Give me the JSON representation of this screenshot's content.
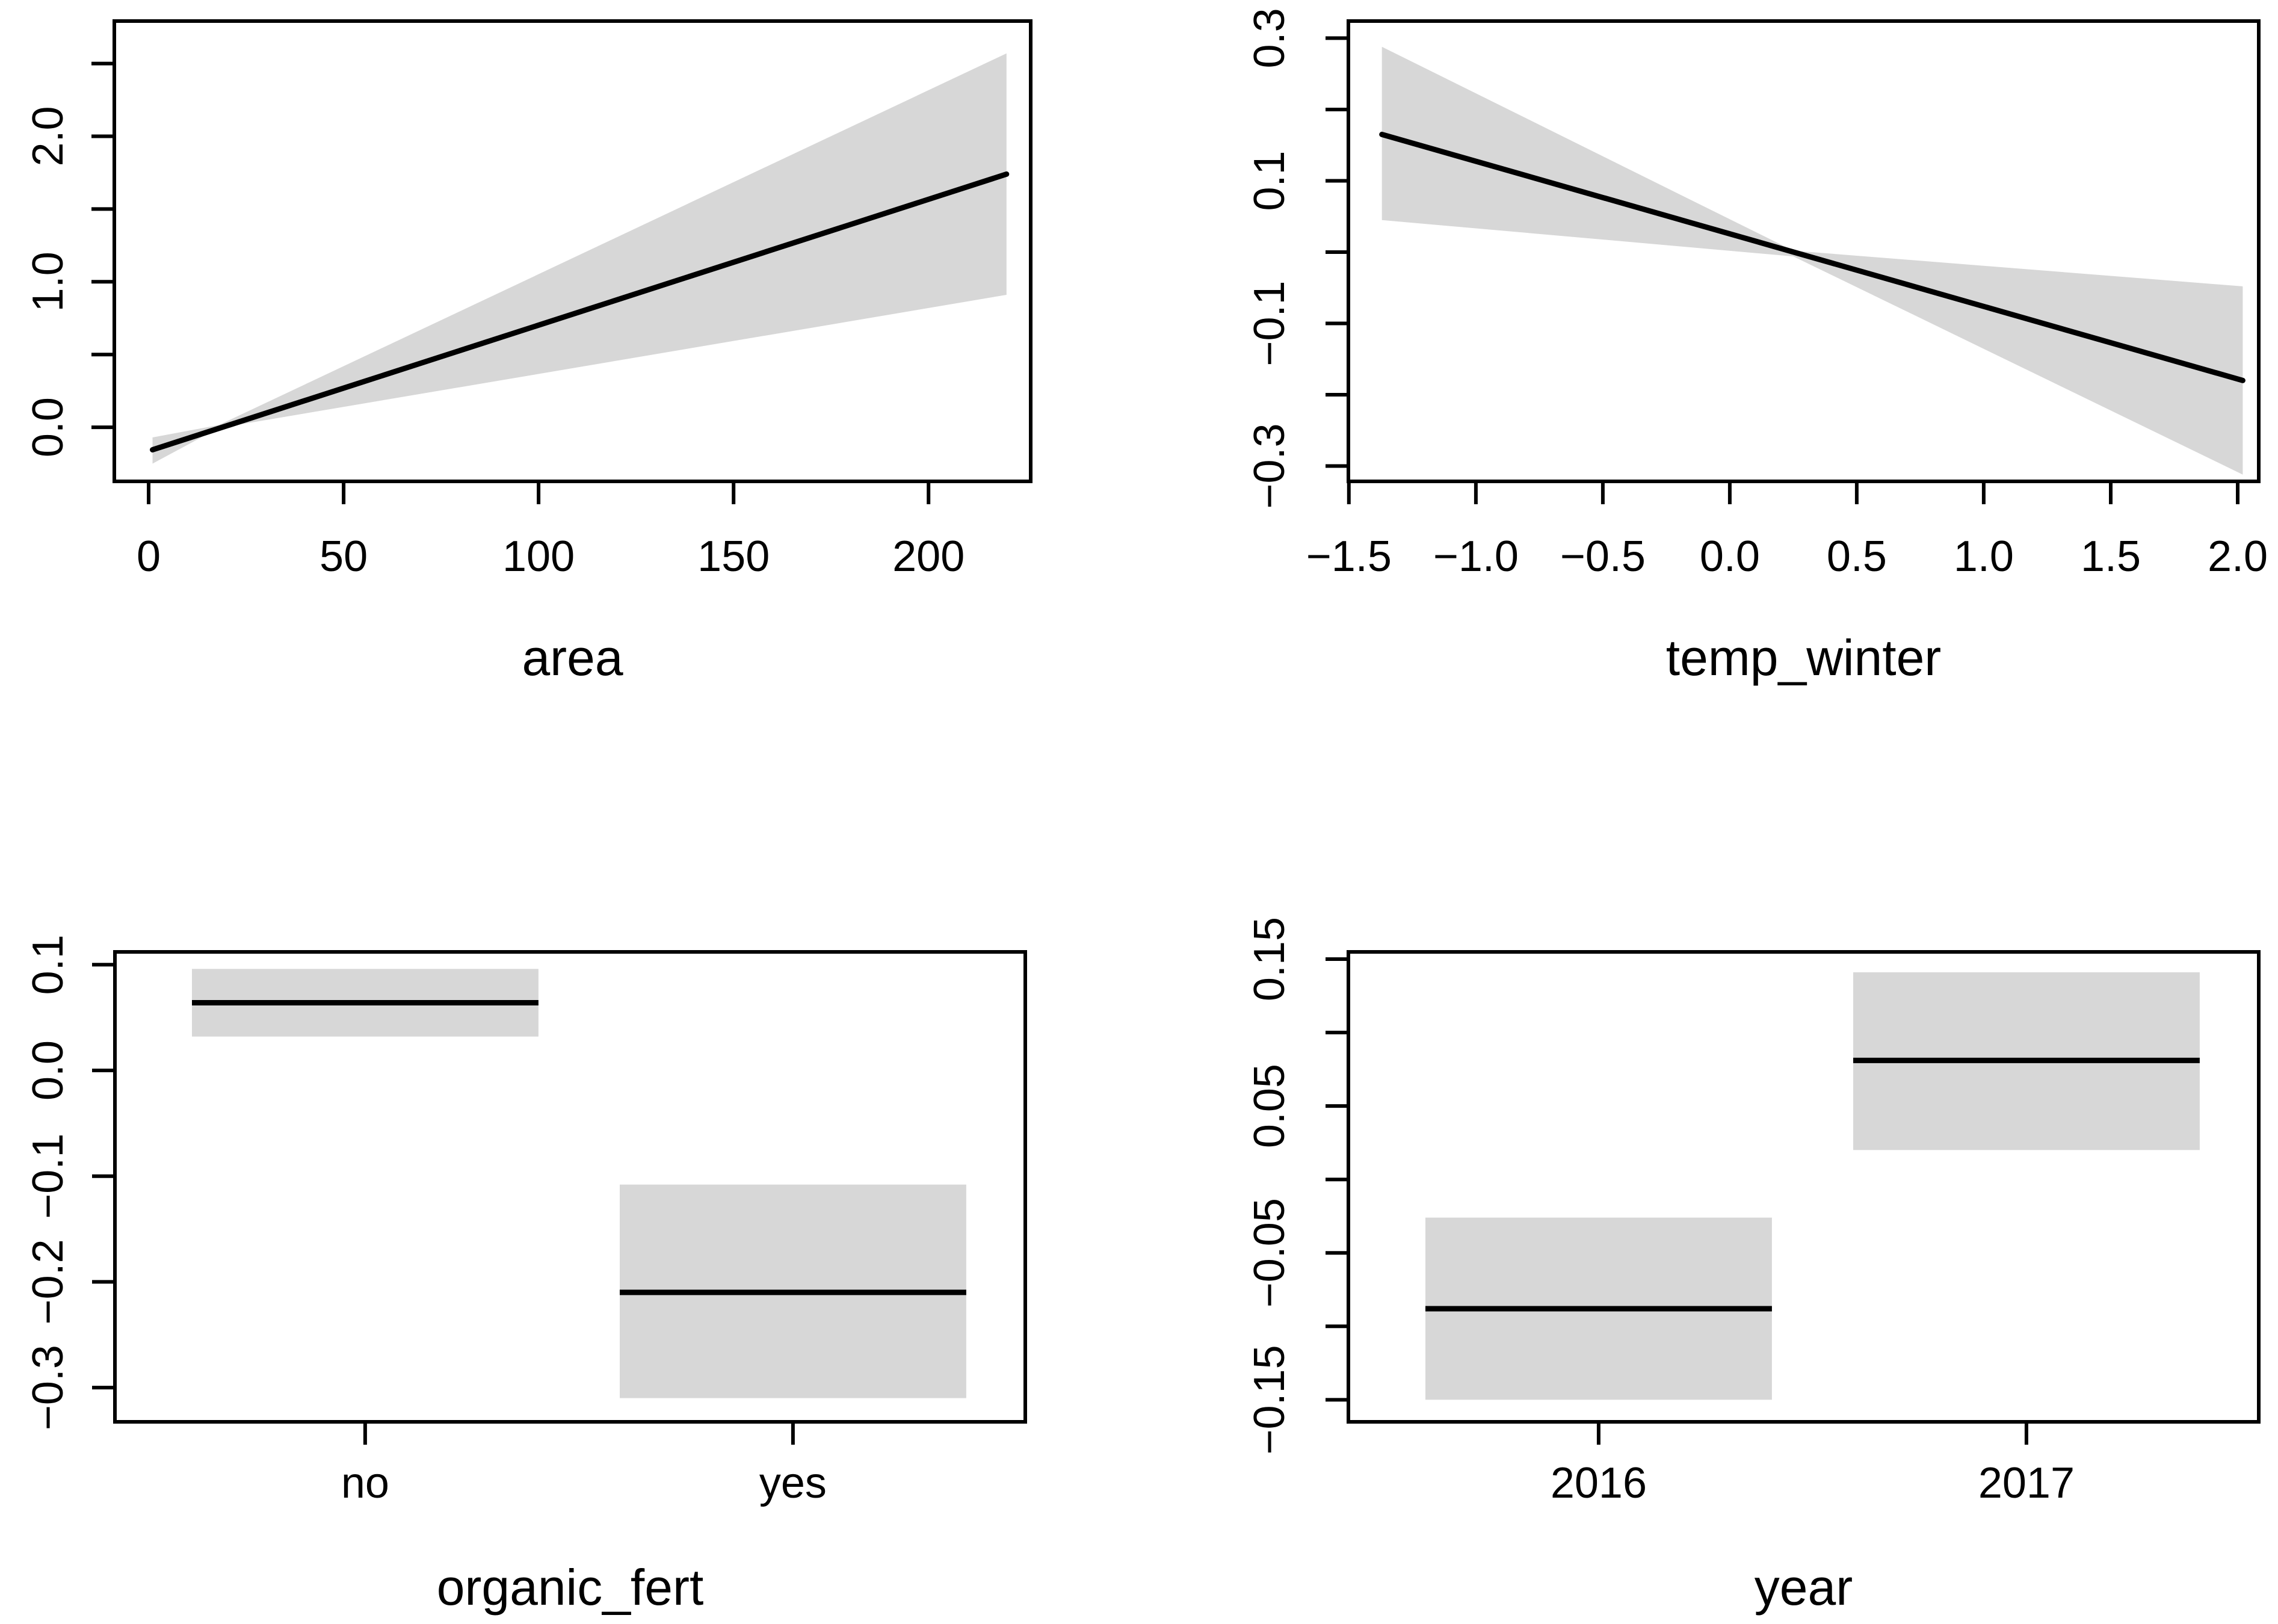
{
  "figure": {
    "background": "#ffffff",
    "ink_color": "#000000",
    "band_color": "#d7d7d7",
    "description": "2x2 grid of regression effect plots with 95% confidence bands"
  },
  "chart_data": [
    {
      "id": "area",
      "type": "line",
      "xlabel": "area",
      "ylabel": "",
      "xlim": [
        -8.8,
        226.2
      ],
      "ylim": [
        -0.372,
        2.792
      ],
      "grid": false,
      "xticks": [
        {
          "v": 0,
          "label": "0"
        },
        {
          "v": 50,
          "label": "50"
        },
        {
          "v": 100,
          "label": "100"
        },
        {
          "v": 150,
          "label": "150"
        },
        {
          "v": 200,
          "label": "200"
        }
      ],
      "yticks": [
        {
          "v": 0.0,
          "label": "0.0"
        },
        {
          "v": 0.5,
          "label": null
        },
        {
          "v": 1.0,
          "label": "1.0"
        },
        {
          "v": 1.5,
          "label": null
        },
        {
          "v": 2.0,
          "label": "2.0"
        },
        {
          "v": 2.5,
          "label": null
        }
      ],
      "fit": [
        [
          1,
          -0.155
        ],
        [
          220,
          1.74
        ]
      ],
      "band_upper": [
        [
          1,
          -0.07
        ],
        [
          18,
          0.015
        ],
        [
          220,
          2.57
        ]
      ],
      "band_lower": [
        [
          1,
          -0.25
        ],
        [
          18,
          -0.005
        ],
        [
          220,
          0.91
        ]
      ]
    },
    {
      "id": "temp_winter",
      "type": "line",
      "xlabel": "temp_winter",
      "ylabel": "",
      "xlim": [
        -1.502,
        2.083
      ],
      "ylim": [
        -0.3215,
        0.324
      ],
      "grid": false,
      "xticks": [
        {
          "v": -1.5,
          "label": "−1.5"
        },
        {
          "v": -1.0,
          "label": "−1.0"
        },
        {
          "v": -0.5,
          "label": "−0.5"
        },
        {
          "v": 0.0,
          "label": "0.0"
        },
        {
          "v": 0.5,
          "label": "0.5"
        },
        {
          "v": 1.0,
          "label": "1.0"
        },
        {
          "v": 1.5,
          "label": "1.5"
        },
        {
          "v": 2.0,
          "label": "2.0"
        }
      ],
      "yticks": [
        {
          "v": -0.3,
          "label": "−0.3"
        },
        {
          "v": -0.2,
          "label": null
        },
        {
          "v": -0.1,
          "label": "−0.1"
        },
        {
          "v": 0.0,
          "label": null
        },
        {
          "v": 0.1,
          "label": "0.1"
        },
        {
          "v": 0.2,
          "label": null
        },
        {
          "v": 0.3,
          "label": "0.3"
        }
      ],
      "fit": [
        [
          -1.37,
          0.165
        ],
        [
          2.02,
          -0.18
        ]
      ],
      "band_upper": [
        [
          -1.37,
          0.288
        ],
        [
          0.25,
          0.002
        ],
        [
          2.02,
          -0.048
        ]
      ],
      "band_lower": [
        [
          -1.37,
          0.045
        ],
        [
          0.25,
          -0.006
        ],
        [
          2.02,
          -0.312
        ]
      ]
    },
    {
      "id": "organic_fert",
      "type": "factor-ci",
      "xlabel": "organic_fert",
      "ylabel": "",
      "xlim": [
        0.415,
        2.543
      ],
      "ylim": [
        -0.3324,
        0.1121
      ],
      "grid": false,
      "box_halfwidth": 0.405,
      "categories": [
        {
          "label": "no",
          "pos": 1,
          "fit": 0.064,
          "lower": 0.032,
          "upper": 0.096
        },
        {
          "label": "yes",
          "pos": 2,
          "fit": -0.21,
          "lower": -0.31,
          "upper": -0.108
        }
      ],
      "yticks": [
        {
          "v": -0.3,
          "label": "−0.3"
        },
        {
          "v": -0.2,
          "label": "−0.2"
        },
        {
          "v": -0.1,
          "label": "−0.1"
        },
        {
          "v": 0.0,
          "label": "0.0"
        },
        {
          "v": 0.1,
          "label": "0.1"
        }
      ]
    },
    {
      "id": "year",
      "type": "factor-ci",
      "xlabel": "year",
      "ylabel": "",
      "xlim": [
        0.415,
        2.543
      ],
      "ylim": [
        -0.165,
        0.1549
      ],
      "grid": false,
      "box_halfwidth": 0.405,
      "categories": [
        {
          "label": "2016",
          "pos": 1,
          "fit": -0.088,
          "lower": -0.15,
          "upper": -0.026
        },
        {
          "label": "2017",
          "pos": 2,
          "fit": 0.081,
          "lower": 0.02,
          "upper": 0.141
        }
      ],
      "yticks": [
        {
          "v": -0.15,
          "label": "−0.15"
        },
        {
          "v": -0.1,
          "label": null
        },
        {
          "v": -0.05,
          "label": "−0.05"
        },
        {
          "v": 0.0,
          "label": null
        },
        {
          "v": 0.05,
          "label": "0.05"
        },
        {
          "v": 0.1,
          "label": null
        },
        {
          "v": 0.15,
          "label": "0.15"
        }
      ]
    }
  ]
}
